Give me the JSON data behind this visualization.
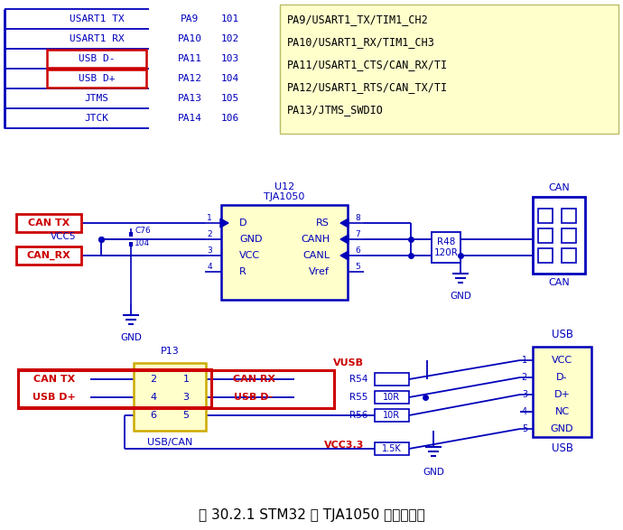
{
  "title": "图 30.2.1 STM32 与 TJA1050 连接电路图",
  "bg_color": "#ffffff",
  "yellow_bg": "#ffffcc",
  "blue_color": "#0000bb",
  "red_color": "#cc0000",
  "dark_red": "#cc0000",
  "pin_table_rows": [
    [
      "USART1 TX",
      "PA9",
      "101"
    ],
    [
      "USART1 RX",
      "PA10",
      "102"
    ],
    [
      "USB D-",
      "PA11",
      "103"
    ],
    [
      "USB D+",
      "PA12",
      "104"
    ],
    [
      "JTMS",
      "PA13",
      "105"
    ],
    [
      "JTCK",
      "PA14",
      "106"
    ]
  ],
  "red_rows": [
    2,
    3
  ],
  "desc_lines": [
    "PA9/USART1_TX/TIM1_CH2",
    "PA10/USART1_RX/TIM1_CH3",
    "PA11/USART1_CTS/CAN_RX/TI",
    "PA12/USART1_RTS/CAN_TX/TI",
    "PA13/JTMS_SWDIO"
  ]
}
